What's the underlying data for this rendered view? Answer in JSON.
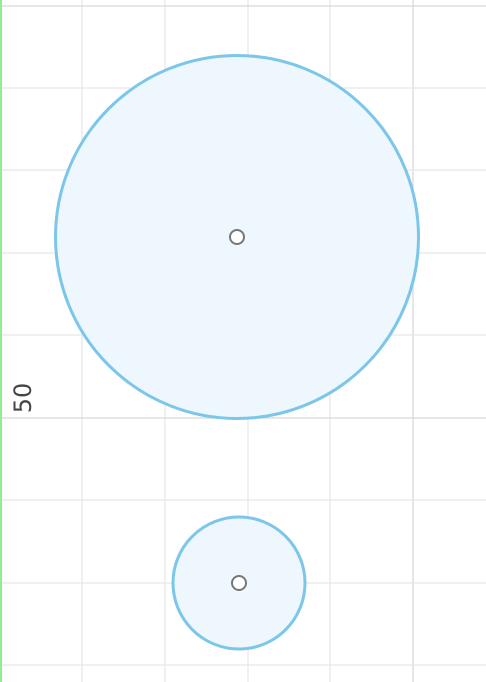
{
  "canvas": {
    "background": "#ffffff",
    "grid_color": "#e6e6e6",
    "major_grid_color": "#d7d7d7",
    "y_axis_color": "#90ee90"
  },
  "axis": {
    "tick_label": "50"
  },
  "shapes": {
    "stroke_color": "#7cc6ea",
    "fill_color": "#edf7fd",
    "center_marker_stroke": "#777777",
    "center_marker_fill": "#ffffff"
  }
}
